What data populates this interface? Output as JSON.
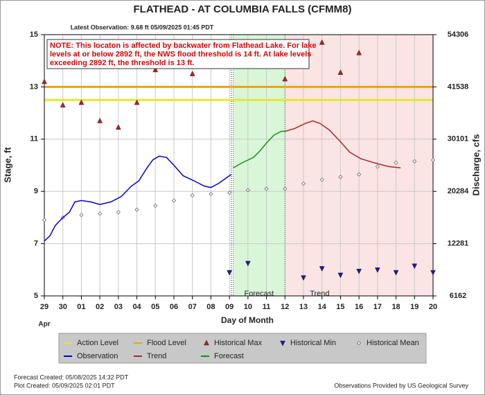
{
  "chart_data": {
    "type": "line",
    "title": "FLATHEAD - AT COLUMBIA FALLS  (CFMM8)",
    "subtitle": "Latest Observation: 9.68 ft 05/09/2025 01:45 PDT",
    "note": [
      "NOTE: This locaton is affected by backwater from Flathead Lake. For lake",
      "levels at or below 2892 ft, the NWS flood threshold is 14 ft.  At lake levels",
      "exceeding 2892 ft, the threshold is 13 ft."
    ],
    "xlabel": "Day of Month",
    "month_label": "Apr",
    "ylabel": "Stage, ft",
    "y2label": "Discharge, cfs",
    "xlim": [
      0,
      21
    ],
    "xticks": [
      {
        "value": 0,
        "label": "29"
      },
      {
        "value": 1,
        "label": "30"
      },
      {
        "value": 2,
        "label": "01"
      },
      {
        "value": 3,
        "label": "02"
      },
      {
        "value": 4,
        "label": "03"
      },
      {
        "value": 5,
        "label": "04"
      },
      {
        "value": 6,
        "label": "05"
      },
      {
        "value": 7,
        "label": "06"
      },
      {
        "value": 8,
        "label": "07"
      },
      {
        "value": 9,
        "label": "08"
      },
      {
        "value": 10,
        "label": "09"
      },
      {
        "value": 11,
        "label": "10"
      },
      {
        "value": 12,
        "label": "11"
      },
      {
        "value": 13,
        "label": "12"
      },
      {
        "value": 14,
        "label": "13"
      },
      {
        "value": 15,
        "label": "14"
      },
      {
        "value": 16,
        "label": "15"
      },
      {
        "value": 17,
        "label": "16"
      },
      {
        "value": 18,
        "label": "17"
      },
      {
        "value": 19,
        "label": "18"
      },
      {
        "value": 20,
        "label": "19"
      },
      {
        "value": 21,
        "label": "20"
      }
    ],
    "ylim": [
      5,
      15
    ],
    "yticks": [
      5,
      7,
      9,
      11,
      13,
      15
    ],
    "y2ticks": [
      6162,
      12281,
      20284,
      30101,
      41538,
      54306
    ],
    "grid": true,
    "thresholds": [
      {
        "name": "Action Level",
        "color": "#e8e820",
        "value": 12.5
      },
      {
        "name": "Flood Level",
        "color": "#f0a010",
        "value": 13
      }
    ],
    "series": [
      {
        "name": "Historical Max",
        "marker": "up",
        "color": "#b22222",
        "x": [
          0,
          1,
          2,
          3,
          4,
          5,
          6,
          8,
          13,
          15,
          16,
          17
        ],
        "values": [
          13.2,
          12.3,
          12.4,
          11.7,
          11.45,
          12.4,
          13.65,
          13.5,
          13.3,
          14.7,
          13.55,
          14.3
        ]
      },
      {
        "name": "Historical Min",
        "marker": "down",
        "color": "#1a1aa0",
        "x": [
          10,
          11,
          14,
          15,
          16,
          17,
          18,
          19,
          20,
          21
        ],
        "values": [
          5.9,
          6.25,
          5.7,
          6.05,
          5.8,
          5.95,
          6.0,
          5.9,
          6.15,
          5.9
        ]
      },
      {
        "name": "Historical Mean",
        "marker": "diamond",
        "color": "#888888",
        "x": [
          0,
          1,
          2,
          3,
          4,
          5,
          6,
          7,
          8,
          9,
          10,
          11,
          12,
          13,
          14,
          15,
          16,
          17,
          18,
          19,
          20,
          21
        ],
        "values": [
          7.9,
          8.0,
          8.1,
          8.15,
          8.2,
          8.3,
          8.45,
          8.65,
          8.85,
          8.9,
          8.95,
          9.05,
          9.1,
          9.1,
          9.3,
          9.45,
          9.55,
          9.65,
          9.95,
          10.1,
          10.15,
          10.2
        ]
      },
      {
        "name": "Observation",
        "color": "#0000cc",
        "x": [
          0,
          0.3,
          0.6,
          1.0,
          1.35,
          1.65,
          2.0,
          2.5,
          3.0,
          3.6,
          4.15,
          4.7,
          5.1,
          5.5,
          5.85,
          6.2,
          6.6,
          7.0,
          7.5,
          8.1,
          8.65,
          9.0,
          9.4,
          9.8,
          10.1
        ],
        "values": [
          7.1,
          7.3,
          7.7,
          8.0,
          8.2,
          8.6,
          8.65,
          8.6,
          8.5,
          8.6,
          8.8,
          9.2,
          9.4,
          9.85,
          10.2,
          10.35,
          10.3,
          10.0,
          9.6,
          9.4,
          9.2,
          9.15,
          9.3,
          9.5,
          9.65
        ]
      },
      {
        "name": "Trend",
        "color": "#a52a2a",
        "shade": "#fbe4e4",
        "x": [
          13.0,
          13.5,
          14.1,
          14.5,
          14.9,
          15.4,
          16.0,
          16.5,
          17.1,
          17.8,
          18.6,
          19.25
        ],
        "values": [
          11.3,
          11.4,
          11.6,
          11.7,
          11.6,
          11.35,
          10.9,
          10.5,
          10.25,
          10.1,
          9.95,
          9.9
        ]
      },
      {
        "name": "Forecast",
        "color": "#1a8a1a",
        "shade": "#d9f6d9",
        "x": [
          10.2,
          10.7,
          11.3,
          11.65,
          12.0,
          12.4,
          12.8,
          13.0
        ],
        "values": [
          9.9,
          10.1,
          10.3,
          10.55,
          10.85,
          11.15,
          11.3,
          11.3
        ]
      }
    ]
  },
  "footer": {
    "forecast_created": "Forecast Created: 05/08/2025 14:32 PDT",
    "plot_created": "Plot Created: 05/09/2025 02:01 PDT",
    "credit": "Observations Provided by US Geological Survey"
  }
}
